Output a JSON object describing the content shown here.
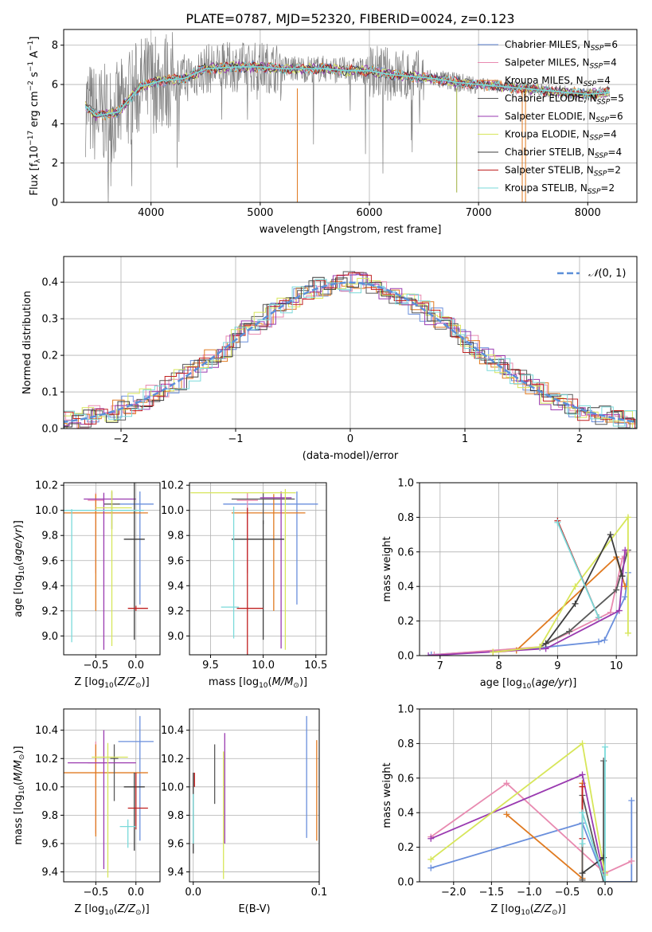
{
  "figure": {
    "title": "PLATE=0787, MJD=52320, FIBERID=0024, z=0.123"
  },
  "colors": {
    "Chabrier MILES": "#6a8fdc",
    "Salpeter MILES": "#e88ab0",
    "Kroupa MILES": "#e07a20",
    "Chabrier ELODIE": "#5a5a5a",
    "Salpeter ELODIE": "#9a3ab0",
    "Kroupa ELODIE": "#d7e65a",
    "Chabrier STELIB": "#3c3c3c",
    "Salpeter STELIB": "#c02020",
    "Kroupa STELIB": "#7adada",
    "normal": "#5b8fd8",
    "spectrum": "#808080"
  },
  "legend_spectrum": [
    {
      "label": "Chabrier MILES, N",
      "sub": "SSP",
      "tail": "=6"
    },
    {
      "label": "Salpeter MILES, N",
      "sub": "SSP",
      "tail": "=4"
    },
    {
      "label": "Kroupa MILES, N",
      "sub": "SSP",
      "tail": "=4"
    },
    {
      "label": "Chabrier ELODIE, N",
      "sub": "SSP",
      "tail": "=5"
    },
    {
      "label": "Salpeter ELODIE, N",
      "sub": "SSP",
      "tail": "=6"
    },
    {
      "label": "Kroupa ELODIE, N",
      "sub": "SSP",
      "tail": "=4"
    },
    {
      "label": "Chabrier STELIB, N",
      "sub": "SSP",
      "tail": "=4"
    },
    {
      "label": "Salpeter STELIB, N",
      "sub": "SSP",
      "tail": "=2"
    },
    {
      "label": "Kroupa STELIB, N",
      "sub": "SSP",
      "tail": "=2"
    }
  ],
  "chart_data": [
    {
      "type": "line",
      "id": "spectrum",
      "xlabel": "wavelength [Angstrom, rest frame]",
      "ylabel": "Flux [f_λ 10^-17 erg cm^-2 s^-1 A^-1]",
      "xlim": [
        3200,
        8450
      ],
      "ylim": [
        0,
        8.8
      ],
      "xticks": [
        4000,
        5000,
        6000,
        7000,
        8000
      ],
      "yticks": [
        0,
        2,
        4,
        6,
        8
      ],
      "grid": true,
      "model_continuum": {
        "x": [
          3400,
          3500,
          3700,
          3900,
          4100,
          4300,
          4500,
          4800,
          5000,
          5200,
          5400,
          5600,
          5800,
          6000,
          6200,
          6400,
          6600,
          6800,
          7000,
          7200,
          7400,
          7600,
          7800,
          8000,
          8200
        ],
        "y": [
          4.9,
          4.4,
          4.6,
          5.9,
          6.2,
          6.3,
          6.8,
          6.9,
          6.9,
          6.8,
          6.8,
          6.8,
          6.7,
          6.7,
          6.5,
          6.4,
          6.3,
          6.1,
          6.0,
          5.9,
          5.8,
          5.7,
          5.6,
          5.5,
          5.6
        ]
      }
    },
    {
      "type": "bar",
      "id": "residuals",
      "xlabel": "(data-model)/error",
      "ylabel": "Normed distribution",
      "xlim": [
        -2.5,
        2.5
      ],
      "ylim": [
        0,
        0.47
      ],
      "xticks": [
        -2,
        -1,
        0,
        1,
        2
      ],
      "yticks": [
        0.0,
        0.1,
        0.2,
        0.3,
        0.4
      ],
      "grid": true,
      "legend": "$\\mathcal{N}(0,1)$",
      "legend_position": "top-right",
      "bin_width": 0.1
    },
    {
      "type": "scatter",
      "id": "age_vs_Z",
      "xlabel": "Z [log10(Z/Z⊙)]",
      "ylabel": "age [log10(age/yr)]",
      "xlim": [
        -0.9,
        0.3
      ],
      "ylim": [
        8.85,
        10.22
      ],
      "xticks": [
        -0.5,
        0.0
      ],
      "yticks": [
        9.0,
        9.2,
        9.4,
        9.6,
        9.8,
        10.0,
        10.2
      ],
      "grid": true,
      "points": [
        {
          "model": "Chabrier MILES",
          "x": 0.05,
          "y": 10.05,
          "xerr": [
            0.27,
            0.17
          ],
          "yerr": [
            0.8,
            0.1
          ]
        },
        {
          "model": "Salpeter MILES",
          "x": -0.5,
          "y": 10.08,
          "xerr": [
            0.1,
            0.1
          ],
          "yerr": [
            0.58,
            0.06
          ]
        },
        {
          "model": "Kroupa MILES",
          "x": -0.5,
          "y": 9.98,
          "xerr": [
            0.4,
            0.65
          ],
          "yerr": [
            0.78,
            0.15
          ]
        },
        {
          "model": "Chabrier ELODIE",
          "x": -0.3,
          "y": 10.05,
          "xerr": [
            0.1,
            0.1
          ],
          "yerr": [
            0.2,
            0.1
          ]
        },
        {
          "model": "Salpeter ELODIE",
          "x": -0.4,
          "y": 10.09,
          "xerr": [
            0.25,
            0.4
          ],
          "yerr": [
            1.2,
            0.05
          ]
        },
        {
          "model": "Kroupa ELODIE",
          "x": -0.3,
          "y": 10.02,
          "xerr": [
            0.2,
            0.25
          ],
          "yerr": [
            1.1,
            0.14
          ]
        },
        {
          "model": "Chabrier STELIB",
          "x": -0.02,
          "y": 9.77,
          "xerr": [
            0.13,
            0.13
          ],
          "yerr": [
            0.8,
            0.45
          ]
        },
        {
          "model": "Salpeter STELIB",
          "x": 0.0,
          "y": 9.22,
          "xerr": [
            0.1,
            0.15
          ],
          "yerr": [
            0.02,
            0.02
          ]
        },
        {
          "model": "Kroupa STELIB",
          "x": -0.8,
          "y": 10.0,
          "xerr": [
            0.1,
            0.9
          ],
          "yerr": [
            1.05,
            0.01
          ]
        }
      ]
    },
    {
      "type": "scatter",
      "id": "age_vs_mass",
      "xlabel": "mass [log10(M/M⊙)]",
      "ylabel": "",
      "xlim": [
        9.3,
        10.6
      ],
      "ylim": [
        8.85,
        10.22
      ],
      "xticks": [
        9.5,
        10.0,
        10.5
      ],
      "yticks": [
        9.0,
        9.2,
        9.4,
        9.6,
        9.8,
        10.0,
        10.2
      ],
      "grid": true,
      "points": [
        {
          "model": "Chabrier MILES",
          "x": 10.32,
          "y": 10.05,
          "xerr": [
            0.7,
            0.2
          ],
          "yerr": [
            0.8,
            0.1
          ]
        },
        {
          "model": "Salpeter MILES",
          "x": 9.85,
          "y": 10.08,
          "xerr": [
            0.1,
            0.1
          ],
          "yerr": [
            0.58,
            0.06
          ]
        },
        {
          "model": "Kroupa MILES",
          "x": 10.1,
          "y": 9.98,
          "xerr": [
            0.4,
            0.3
          ],
          "yerr": [
            0.78,
            0.15
          ]
        },
        {
          "model": "Chabrier ELODIE",
          "x": 10.0,
          "y": 10.09,
          "xerr": [
            0.3,
            0.3
          ],
          "yerr": [
            0.2,
            0.05
          ]
        },
        {
          "model": "Salpeter ELODIE",
          "x": 10.17,
          "y": 10.1,
          "xerr": [
            0.2,
            0.1
          ],
          "yerr": [
            1.2,
            0.05
          ]
        },
        {
          "model": "Kroupa ELODIE",
          "x": 10.21,
          "y": 10.14,
          "xerr": [
            0.9,
            0.1
          ],
          "yerr": [
            1.25,
            0.03
          ]
        },
        {
          "model": "Chabrier STELIB",
          "x": 10.0,
          "y": 9.77,
          "xerr": [
            0.3,
            0.2
          ],
          "yerr": [
            0.8,
            0.15
          ]
        },
        {
          "model": "Salpeter STELIB",
          "x": 9.85,
          "y": 9.22,
          "xerr": [
            0.1,
            0.15
          ],
          "yerr": [
            0.5,
            0.8
          ]
        },
        {
          "model": "Kroupa STELIB",
          "x": 9.72,
          "y": 9.23,
          "xerr": [
            0.12,
            0.05
          ],
          "yerr": [
            0.25,
            0.8
          ]
        }
      ]
    },
    {
      "type": "line",
      "id": "weight_vs_age",
      "xlabel": "age [log10(age/yr)]",
      "ylabel": "mass weight",
      "xlim": [
        6.65,
        10.35
      ],
      "ylim": [
        0,
        1.0
      ],
      "xticks": [
        7,
        8,
        9,
        10
      ],
      "yticks": [
        0.0,
        0.2,
        0.4,
        0.6,
        0.8,
        1.0
      ],
      "grid": true,
      "series": [
        {
          "model": "Chabrier MILES",
          "x": [
            6.85,
            8.7,
            9.7,
            9.8,
            10.15,
            10.2
          ],
          "y": [
            0.005,
            0.045,
            0.08,
            0.09,
            0.34,
            0.48
          ]
        },
        {
          "model": "Salpeter MILES",
          "x": [
            6.9,
            8.7,
            9.9,
            10.1,
            10.18
          ],
          "y": [
            0.005,
            0.05,
            0.25,
            0.56,
            0.6
          ]
        },
        {
          "model": "Kroupa MILES",
          "x": [
            7.9,
            8.3,
            10.0,
            10.15
          ],
          "y": [
            0.02,
            0.03,
            0.57,
            0.4
          ]
        },
        {
          "model": "Chabrier ELODIE",
          "x": [
            8.7,
            9.2,
            10.0,
            10.2
          ],
          "y": [
            0.05,
            0.14,
            0.38,
            0.61
          ]
        },
        {
          "model": "Salpeter ELODIE",
          "x": [
            6.8,
            8.8,
            10.05,
            10.15
          ],
          "y": [
            0.0,
            0.04,
            0.26,
            0.61
          ]
        },
        {
          "model": "Kroupa ELODIE",
          "x": [
            7.9,
            8.7,
            9.3,
            10.2,
            10.2
          ],
          "y": [
            0.02,
            0.05,
            0.4,
            0.8,
            0.13
          ]
        },
        {
          "model": "Chabrier STELIB",
          "x": [
            8.8,
            9.3,
            9.9,
            10.1
          ],
          "y": [
            0.07,
            0.3,
            0.7,
            0.46
          ]
        },
        {
          "model": "Salpeter STELIB",
          "x": [
            9.0,
            9.7
          ],
          "y": [
            0.78,
            0.22
          ]
        },
        {
          "model": "Kroupa STELIB",
          "x": [
            9.0,
            9.7
          ],
          "y": [
            0.77,
            0.22
          ]
        }
      ]
    },
    {
      "type": "scatter",
      "id": "mass_vs_Z",
      "xlabel": "Z [log10(Z/Z⊙)]",
      "ylabel": "mass [log10(M/M⊙)]",
      "xlim": [
        -0.9,
        0.3
      ],
      "ylim": [
        9.33,
        10.55
      ],
      "xticks": [
        -0.5,
        0.0
      ],
      "yticks": [
        9.4,
        9.6,
        9.8,
        10.0,
        10.2,
        10.4
      ],
      "grid": true,
      "points": [
        {
          "model": "Chabrier MILES",
          "x": 0.05,
          "y": 10.32,
          "xerr": [
            0.27,
            0.17
          ],
          "yerr": [
            0.7,
            0.18
          ]
        },
        {
          "model": "Salpeter MILES",
          "x": -0.5,
          "y": 10.17,
          "xerr": [
            0.1,
            0.1
          ],
          "yerr": [
            0.5,
            0.15
          ]
        },
        {
          "model": "Kroupa MILES",
          "x": -0.5,
          "y": 10.1,
          "xerr": [
            0.4,
            0.65
          ],
          "yerr": [
            0.45,
            0.2
          ]
        },
        {
          "model": "Chabrier ELODIE",
          "x": -0.27,
          "y": 10.2,
          "xerr": [
            0.05,
            0.05
          ],
          "yerr": [
            0.3,
            0.1
          ]
        },
        {
          "model": "Salpeter ELODIE",
          "x": -0.4,
          "y": 10.17,
          "xerr": [
            0.45,
            0.4
          ],
          "yerr": [
            0.75,
            0.23
          ]
        },
        {
          "model": "Kroupa ELODIE",
          "x": -0.35,
          "y": 10.21,
          "xerr": [
            0.2,
            0.25
          ],
          "yerr": [
            0.85,
            0.1
          ]
        },
        {
          "model": "Chabrier STELIB",
          "x": -0.02,
          "y": 10.0,
          "xerr": [
            0.13,
            0.13
          ],
          "yerr": [
            0.45,
            0.1
          ]
        },
        {
          "model": "Salpeter STELIB",
          "x": 0.0,
          "y": 9.85,
          "xerr": [
            0.1,
            0.15
          ],
          "yerr": [
            0.15,
            0.25
          ]
        },
        {
          "model": "Kroupa STELIB",
          "x": -0.1,
          "y": 9.72,
          "xerr": [
            0.1,
            0.1
          ],
          "yerr": [
            0.15,
            0.05
          ]
        }
      ]
    },
    {
      "type": "scatter",
      "id": "mass_vs_ebv",
      "xlabel": "E(B-V)",
      "ylabel": "",
      "xlim": [
        -0.003,
        0.1
      ],
      "ylim": [
        9.33,
        10.55
      ],
      "xticks": [
        0.0,
        0.1
      ],
      "yticks": [
        9.4,
        9.6,
        9.8,
        10.0,
        10.2,
        10.4
      ],
      "grid": true,
      "points": [
        {
          "model": "Chabrier MILES",
          "x": 0.09,
          "y": 10.32,
          "yerr": [
            0.68,
            0.18
          ]
        },
        {
          "model": "Kroupa MILES",
          "x": 0.098,
          "y": 10.0,
          "yerr": [
            0.38,
            0.33
          ]
        },
        {
          "model": "Chabrier ELODIE",
          "x": 0.017,
          "y": 10.1,
          "yerr": [
            0.22,
            0.2
          ]
        },
        {
          "model": "Salpeter ELODIE",
          "x": 0.025,
          "y": 10.0,
          "yerr": [
            0.4,
            0.38
          ]
        },
        {
          "model": "Kroupa ELODIE",
          "x": 0.024,
          "y": 9.9,
          "yerr": [
            0.55,
            0.35
          ]
        },
        {
          "model": "Chabrier STELIB",
          "x": 0.0,
          "y": 9.9,
          "yerr": [
            0.37,
            0.2
          ]
        },
        {
          "model": "Salpeter STELIB",
          "x": 0.001,
          "y": 10.05,
          "yerr": [
            0.05,
            0.05
          ]
        },
        {
          "model": "Kroupa STELIB",
          "x": 0.0,
          "y": 9.85,
          "yerr": [
            0.25,
            0.1
          ]
        }
      ]
    },
    {
      "type": "line",
      "id": "weight_vs_Z",
      "xlabel": "Z [log10(Z/Z⊙)]",
      "ylabel": "mass weight",
      "xlim": [
        -2.45,
        0.42
      ],
      "ylim": [
        0,
        1.0
      ],
      "xticks": [
        -2.0,
        -1.5,
        -1.0,
        -0.5,
        0.0
      ],
      "yticks": [
        0.0,
        0.2,
        0.4,
        0.6,
        0.8,
        1.0
      ],
      "grid": true,
      "series": [
        {
          "model": "Chabrier MILES",
          "x": [
            -2.3,
            -0.3,
            0.0,
            0.35,
            0.35
          ],
          "y": [
            0.08,
            0.34,
            0.0,
            0.0,
            0.47
          ]
        },
        {
          "model": "Salpeter MILES",
          "x": [
            -2.3,
            -1.3,
            0.0,
            0.35
          ],
          "y": [
            0.26,
            0.57,
            0.05,
            0.12
          ]
        },
        {
          "model": "Kroupa MILES",
          "x": [
            -1.3,
            -0.3,
            -0.3
          ],
          "y": [
            0.39,
            0.02,
            0.57
          ]
        },
        {
          "model": "Chabrier ELODIE",
          "x": [
            -0.3,
            -0.3,
            -0.02,
            -0.02
          ],
          "y": [
            0.01,
            0.5,
            0.0,
            0.7
          ]
        },
        {
          "model": "Salpeter ELODIE",
          "x": [
            -2.3,
            -0.3,
            0.0
          ],
          "y": [
            0.25,
            0.62,
            0.0
          ]
        },
        {
          "model": "Kroupa ELODIE",
          "x": [
            -2.3,
            -0.3,
            0.0,
            0.0
          ],
          "y": [
            0.13,
            0.8,
            0.04,
            0.06
          ]
        },
        {
          "model": "Chabrier STELIB",
          "x": [
            -0.3,
            -0.02
          ],
          "y": [
            0.05,
            0.14
          ]
        },
        {
          "model": "Salpeter STELIB",
          "x": [
            -0.3,
            -0.3
          ],
          "y": [
            0.25,
            0.55
          ]
        },
        {
          "model": "Kroupa STELIB",
          "x": [
            -0.3,
            -0.3,
            0.0,
            0.0
          ],
          "y": [
            0.22,
            0.4,
            0.0,
            0.78
          ]
        }
      ]
    }
  ]
}
